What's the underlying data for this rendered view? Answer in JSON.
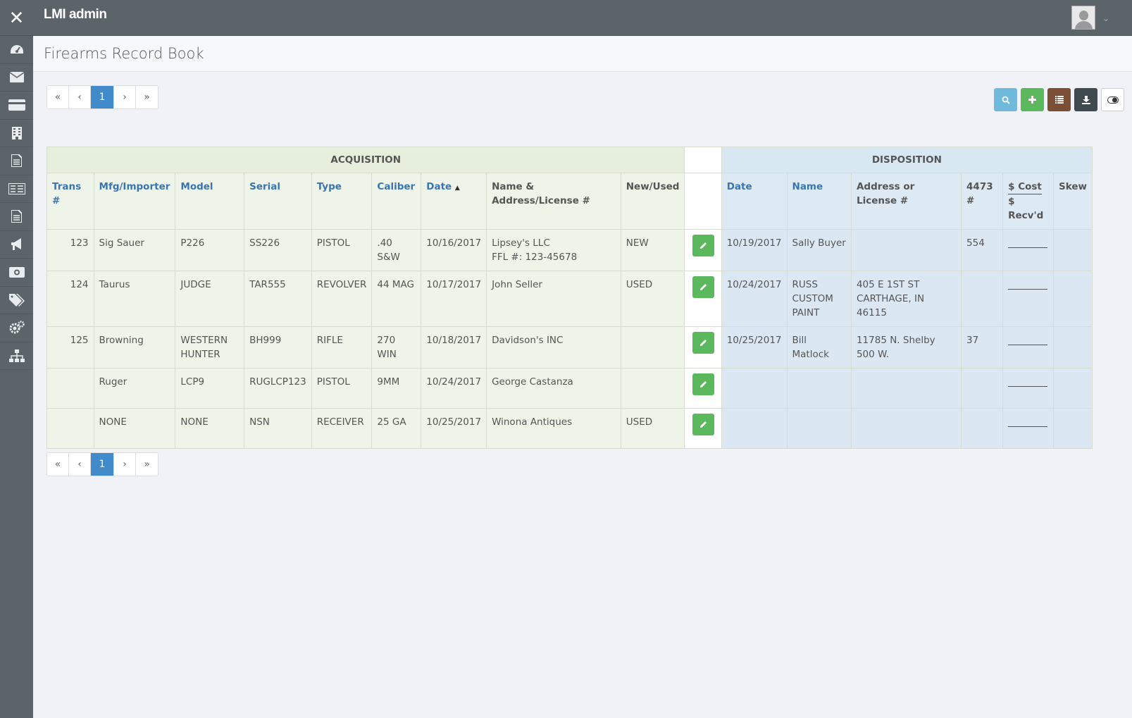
{
  "app": {
    "title": "LMI admin"
  },
  "page": {
    "title": "Firearms Record Book"
  },
  "pagination": {
    "first": "«",
    "prev": "‹",
    "current": "1",
    "next": "›",
    "last": "»"
  },
  "colors": {
    "topbar": "#5b6468",
    "search": "#5bc0de",
    "add": "#5cb85c",
    "list": "#7b4f36",
    "download": "#3f4a50",
    "toggle": "#ffffff"
  },
  "toolbar": {
    "buttons": [
      {
        "name": "search-icon",
        "glyph": "⌕",
        "color": "#6fb9dd"
      },
      {
        "name": "plus-icon",
        "glyph": "+",
        "color": "#5cb85c"
      },
      {
        "name": "list-icon",
        "glyph": "≣",
        "color": "#7b4f36"
      },
      {
        "name": "download-icon",
        "glyph": "⇩",
        "color": "#3f4a50"
      },
      {
        "name": "toggle-icon",
        "glyph": "◐",
        "color": "#ffffff"
      }
    ]
  },
  "sidebar": {
    "icons": [
      "dashboard-icon",
      "envelope-icon",
      "credit-card-icon",
      "building-icon",
      "document-icon",
      "newspaper-icon",
      "file-icon",
      "megaphone-icon",
      "money-icon",
      "tags-icon",
      "cogs-icon",
      "sitemap-icon"
    ]
  },
  "table": {
    "groups": {
      "acquisition": "ACQUISITION",
      "disposition": "DISPOSITION"
    },
    "headers": {
      "trans": "Trans #",
      "mfg": "Mfg/Importer",
      "model": "Model",
      "serial": "Serial",
      "type": "Type",
      "caliber": "Caliber",
      "date": "Date",
      "name_addr": "Name & Address/License #",
      "new_used": "New/Used",
      "d_date": "Date",
      "d_name": "Name",
      "d_addr": "Address or License #",
      "f4473": "4473 #",
      "cost": "$ Cost",
      "recvd": "$ Recv'd",
      "skew": "Skew"
    },
    "rows": [
      {
        "trans": "123",
        "mfg": "Sig Sauer",
        "model": "P226",
        "serial": "SS226",
        "type": "PISTOL",
        "caliber": ".40 S&W",
        "date": "10/16/2017",
        "name_addr": "Lipsey's LLC",
        "name_addr2": "FFL #: 123-45678",
        "new_used": "NEW",
        "d_date": "10/19/2017",
        "d_name": "Sally Buyer",
        "d_addr": "",
        "f4473": "554"
      },
      {
        "trans": "124",
        "mfg": "Taurus",
        "model": "JUDGE",
        "serial": "TAR555",
        "type": "REVOLVER",
        "caliber": "44 MAG",
        "date": "10/17/2017",
        "name_addr": "John Seller",
        "name_addr2": "",
        "new_used": "USED",
        "d_date": "10/24/2017",
        "d_name": "RUSS CUSTOM PAINT",
        "d_addr": "405 E 1ST ST CARTHAGE, IN 46115",
        "f4473": ""
      },
      {
        "trans": "125",
        "mfg": "Browning",
        "model": "WESTERN HUNTER",
        "serial": "BH999",
        "type": "RIFLE",
        "caliber": "270 WIN",
        "date": "10/18/2017",
        "name_addr": "Davidson's INC",
        "name_addr2": "",
        "new_used": "",
        "d_date": "10/25/2017",
        "d_name": "Bill Matlock",
        "d_addr": "11785 N. Shelby 500 W.",
        "f4473": "37"
      },
      {
        "trans": "",
        "mfg": "Ruger",
        "model": "LCP9",
        "serial": "RUGLCP123",
        "type": "PISTOL",
        "caliber": "9MM",
        "date": "10/24/2017",
        "name_addr": "George Castanza",
        "name_addr2": "",
        "new_used": "",
        "d_date": "",
        "d_name": "",
        "d_addr": "",
        "f4473": ""
      },
      {
        "trans": "",
        "mfg": "NONE",
        "model": "NONE",
        "serial": "NSN",
        "type": "RECEIVER",
        "caliber": "25 GA",
        "date": "10/25/2017",
        "name_addr": "Winona Antiques",
        "name_addr2": "",
        "new_used": "USED",
        "d_date": "",
        "d_name": "",
        "d_addr": "",
        "f4473": ""
      }
    ]
  }
}
